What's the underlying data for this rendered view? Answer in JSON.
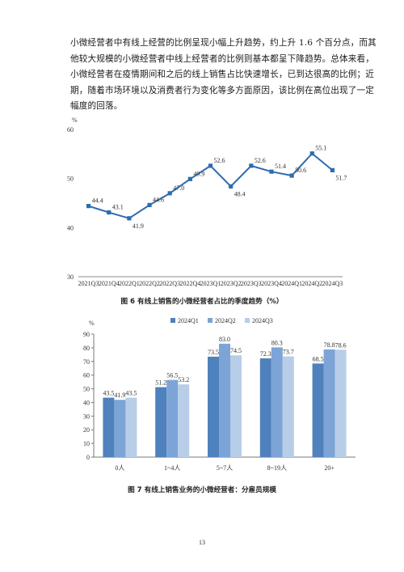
{
  "paragraph": {
    "lines": [
      "小微经营者中有线上经营的比例呈现小幅上升趋势，约上升 1.6 个百分点，而其",
      "他较大规模的小微经营者中线上经营者的比例则基本都呈下降趋势。总体来看，",
      "小微经营者在疫情期间和之后的线上销售占比快速增长，已到达很高的比例；近",
      "期，随着市场环境以及消费者行为变化等多方面原因，该比例在高位出现了一定",
      "幅度的回落。"
    ]
  },
  "figure6": {
    "caption": "图 6 有线上销售的小微经营者占比的季度趋势（%）",
    "chart_data": {
      "type": "line",
      "title": "",
      "ylabel": "%",
      "xlabel": "",
      "ylim": [
        30,
        60
      ],
      "yticks": [
        30,
        40,
        50,
        60
      ],
      "grid": false,
      "categories": [
        "2021Q3",
        "2021Q4",
        "2022Q1",
        "2022Q2",
        "2022Q3",
        "2022Q4",
        "2023Q1",
        "2023Q2",
        "2023Q3",
        "2023Q4",
        "2024Q1",
        "2024Q2",
        "2024Q3"
      ],
      "series": [
        {
          "values": [
            44.4,
            43.1,
            41.9,
            44.6,
            47.0,
            49.9,
            52.6,
            48.4,
            52.6,
            51.4,
            50.6,
            55.1,
            51.7
          ],
          "color": "#2e6bb0"
        }
      ],
      "data_labels": [
        "44.4",
        "43.1",
        "41.9",
        "44.6",
        "47.0",
        "49.9",
        "52.6",
        "48.4",
        "52.6",
        "51.4",
        "50.6",
        "55.1",
        "51.7"
      ]
    }
  },
  "figure7": {
    "caption": "图 7 有线上销售业务的小微经营者：分雇员规模",
    "chart_data": {
      "type": "bar",
      "title": "",
      "ylabel": "%",
      "xlabel": "",
      "ylim": [
        0,
        90
      ],
      "yticks": [
        0,
        10,
        20,
        30,
        40,
        50,
        60,
        70,
        80,
        90
      ],
      "grid": false,
      "legend_position": "top",
      "categories": [
        "0人",
        "1~4人",
        "5~7人",
        "8~19人",
        "20+"
      ],
      "series": [
        {
          "name": "2024Q1",
          "values": [
            43.5,
            51.2,
            73.5,
            72.3,
            68.5
          ],
          "color": "#4f81bd"
        },
        {
          "name": "2024Q2",
          "values": [
            41.9,
            56.5,
            83.0,
            80.3,
            78.8
          ],
          "color": "#7ca4d6"
        },
        {
          "name": "2024Q3",
          "values": [
            43.5,
            53.2,
            74.5,
            73.7,
            78.6
          ],
          "color": "#b8cde8"
        }
      ],
      "data_labels": [
        [
          "43.5",
          "51.2",
          "73.5",
          "72.3",
          "68.5"
        ],
        [
          "41.9",
          "56.5",
          "83.0",
          "80.3",
          "78.8"
        ],
        [
          "43.5",
          "53.2",
          "74.5",
          "73.7",
          "78.6"
        ]
      ]
    }
  },
  "page_number": "13"
}
